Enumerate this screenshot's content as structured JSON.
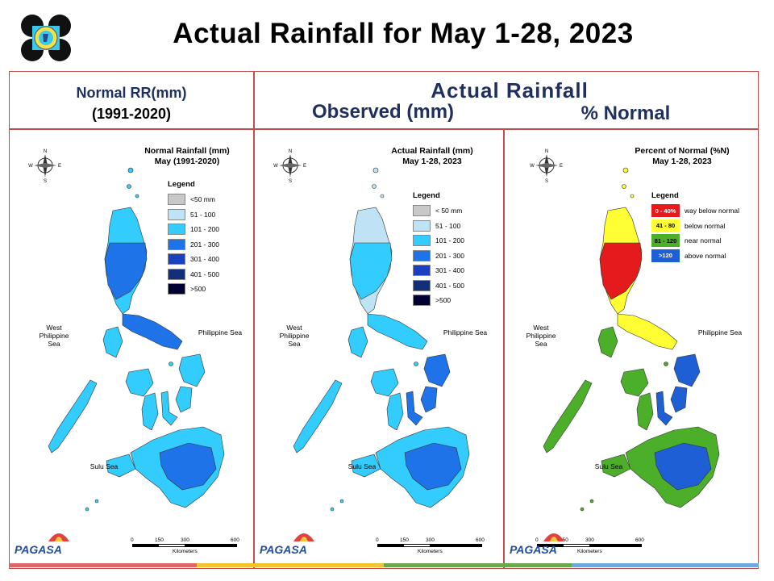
{
  "title": "Actual Rainfall for May 1-28, 2023",
  "header": {
    "left_line1": "Normal RR(mm)",
    "left_line2": "(1991-2020)",
    "right_title": "Actual Rainfall",
    "right_sub1": "Observed (mm)",
    "right_sub2": "% Normal"
  },
  "colors": {
    "frame": "#c0504d",
    "header_text": "#1f2f5f",
    "rr_lt50": "#c8c8c8",
    "rr_51_100": "#bfe3f5",
    "rr_101_200": "#33ccff",
    "rr_201_300": "#1e73e8",
    "rr_301_400": "#1a3fbf",
    "rr_401_500": "#142f7a",
    "rr_gt500": "#000033",
    "pct_way_below": "#e41a1c",
    "pct_below": "#ffff33",
    "pct_near": "#4caf2a",
    "pct_above": "#1f5fd6"
  },
  "panels": [
    {
      "title_line1": "Normal Rainfall (mm)",
      "title_line2": "May (1991-2020)",
      "legend_title": "Legend",
      "legend": [
        {
          "label": "<50 mm",
          "color": "#c8c8c8"
        },
        {
          "label": "51 - 100",
          "color": "#bfe3f5"
        },
        {
          "label": "101 - 200",
          "color": "#33ccff"
        },
        {
          "label": "201 - 300",
          "color": "#1e73e8"
        },
        {
          "label": "301 - 400",
          "color": "#1a3fbf"
        },
        {
          "label": "401 - 500",
          "color": "#142f7a"
        },
        {
          "label": ">500",
          "color": "#000033"
        }
      ],
      "sea_west_1": "West",
      "sea_west_2": "Philippine Sea",
      "sea_east": "Philippine Sea",
      "sea_sulu": "Sulu Sea",
      "scale_ticks": [
        "0",
        "150",
        "300",
        "600"
      ],
      "scale_unit": "Kilometers",
      "logo_text": "PAGASA",
      "compass": {
        "n": "N",
        "s": "S",
        "e": "E",
        "w": "W"
      }
    },
    {
      "title_line1": "Actual Rainfall (mm)",
      "title_line2": "May 1-28, 2023",
      "legend_title": "Legend",
      "legend": [
        {
          "label": "< 50 mm",
          "color": "#c8c8c8"
        },
        {
          "label": "51 - 100",
          "color": "#bfe3f5"
        },
        {
          "label": "101 - 200",
          "color": "#33ccff"
        },
        {
          "label": "201 - 300",
          "color": "#1e73e8"
        },
        {
          "label": "301 - 400",
          "color": "#1a3fbf"
        },
        {
          "label": "401 - 500",
          "color": "#142f7a"
        },
        {
          "label": ">500",
          "color": "#000033"
        }
      ],
      "sea_west_1": "West",
      "sea_west_2": "Philippine Sea",
      "sea_east": "Philippine Sea",
      "sea_sulu": "Sulu Sea",
      "scale_ticks": [
        "0",
        "150",
        "300",
        "600"
      ],
      "scale_unit": "Kilometers",
      "logo_text": "PAGASA",
      "compass": {
        "n": "N",
        "s": "S",
        "e": "E",
        "w": "W"
      }
    },
    {
      "title_line1": "Percent of Normal (%N)",
      "title_line2": "May 1-28, 2023",
      "legend_title": "Legend",
      "legend": [
        {
          "range": "0 - 40%",
          "label": "way below normal",
          "color": "#e41a1c"
        },
        {
          "range": "41 - 80",
          "label": "below normal",
          "color": "#ffff33"
        },
        {
          "range": "81 - 120",
          "label": "near normal",
          "color": "#4caf2a"
        },
        {
          "range": ">120",
          "label": "above normal",
          "color": "#1f5fd6"
        }
      ],
      "sea_west_1": "West",
      "sea_west_2": "Philippine Sea",
      "sea_east": "Philippine Sea",
      "sea_sulu": "Sulu Sea",
      "scale_ticks": [
        "0",
        "150",
        "300",
        "600"
      ],
      "scale_unit": "Kilometers",
      "logo_text": "PAGASA",
      "compass": {
        "n": "N",
        "s": "S",
        "e": "E",
        "w": "W"
      }
    }
  ]
}
